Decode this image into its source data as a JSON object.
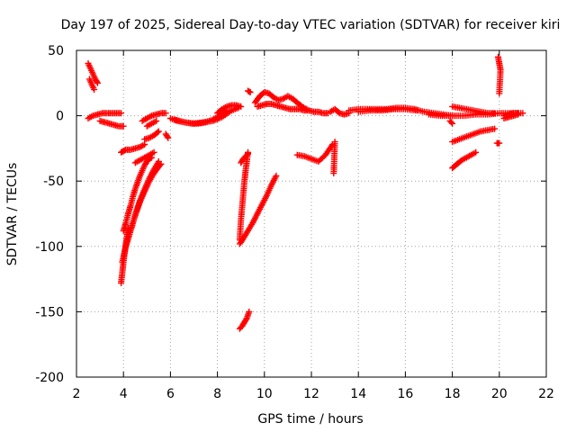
{
  "chart_data": {
    "type": "scatter",
    "title": "Day 197 of 2025, Sidereal Day-to-day VTEC variation (SDTVAR) for receiver kiri",
    "xlabel": "GPS time / hours",
    "ylabel": "SDTVAR / TECUs",
    "xlim": [
      2,
      22
    ],
    "ylim": [
      -200,
      50
    ],
    "xticks": [
      "2",
      "4",
      "6",
      "8",
      "10",
      "12",
      "14",
      "16",
      "18",
      "20",
      "22"
    ],
    "yticks": [
      "50",
      "0",
      "-50",
      "-100",
      "-150",
      "-200"
    ],
    "grid": true,
    "marker": "plus",
    "color": "#ff0000",
    "segments": [
      {
        "x": [
          2.5,
          2.6,
          2.7,
          2.8,
          2.9
        ],
        "y": [
          40,
          36,
          32,
          28,
          25
        ]
      },
      {
        "x": [
          2.55,
          2.65,
          2.75
        ],
        "y": [
          28,
          24,
          20
        ]
      },
      {
        "x": [
          2.5,
          2.7,
          2.9,
          3.1,
          3.3,
          3.5,
          3.7,
          3.9
        ],
        "y": [
          -2,
          0,
          1,
          2,
          2,
          2,
          2,
          2
        ]
      },
      {
        "x": [
          3.0,
          3.2,
          3.4,
          3.6,
          3.8,
          4.0
        ],
        "y": [
          -4,
          -5,
          -6,
          -7,
          -8,
          -8
        ]
      },
      {
        "x": [
          3.9,
          4.0,
          4.1,
          4.3,
          4.5,
          4.7,
          4.9
        ],
        "y": [
          -28,
          -27,
          -26,
          -26,
          -25,
          -24,
          -22
        ]
      },
      {
        "x": [
          3.9,
          3.95,
          4.0,
          4.05,
          4.1,
          4.15,
          4.2
        ],
        "y": [
          -128,
          -120,
          -112,
          -105,
          -98,
          -92,
          -86
        ]
      },
      {
        "x": [
          3.95,
          4.1,
          4.3,
          4.5,
          4.7,
          4.9,
          5.1,
          5.3,
          5.5
        ],
        "y": [
          -112,
          -100,
          -88,
          -76,
          -65,
          -56,
          -48,
          -41,
          -35
        ]
      },
      {
        "x": [
          4.1,
          4.3,
          4.5,
          4.7,
          4.9,
          5.1,
          5.3,
          5.5,
          5.6
        ],
        "y": [
          -100,
          -88,
          -76,
          -66,
          -58,
          -50,
          -44,
          -39,
          -37
        ]
      },
      {
        "x": [
          4.0,
          4.1,
          4.2,
          4.3,
          4.4,
          4.5,
          4.6,
          4.7,
          4.8,
          4.9,
          5.0,
          5.1,
          5.2
        ],
        "y": [
          -88,
          -82,
          -75,
          -69,
          -62,
          -56,
          -51,
          -46,
          -42,
          -38,
          -35,
          -33,
          -32
        ]
      },
      {
        "x": [
          4.5,
          4.7,
          4.9,
          5.1,
          5.3
        ],
        "y": [
          -36,
          -34,
          -32,
          -30,
          -28
        ]
      },
      {
        "x": [
          4.9,
          5.1,
          5.3,
          5.5
        ],
        "y": [
          -18,
          -17,
          -15,
          -12
        ]
      },
      {
        "x": [
          5.0,
          5.2,
          5.4
        ],
        "y": [
          -8,
          -6,
          -4
        ]
      },
      {
        "x": [
          4.8,
          5.0,
          5.2,
          5.4,
          5.6,
          5.8
        ],
        "y": [
          -4,
          -2,
          0,
          1,
          2,
          2
        ]
      },
      {
        "x": [
          5.8,
          5.9
        ],
        "y": [
          -14,
          -17
        ]
      },
      {
        "x": [
          6.0,
          6.3,
          6.6,
          6.9,
          7.2,
          7.5,
          7.8,
          8.1,
          8.4
        ],
        "y": [
          -2,
          -4,
          -5,
          -6,
          -6,
          -5,
          -3,
          0,
          4
        ]
      },
      {
        "x": [
          6.2,
          6.6,
          7.0,
          7.4,
          7.8,
          8.2,
          8.6,
          8.9
        ],
        "y": [
          -3,
          -5,
          -6,
          -5,
          -4,
          -1,
          4,
          6
        ]
      },
      {
        "x": [
          8.0,
          8.2,
          8.4,
          8.6,
          8.8,
          9.0
        ],
        "y": [
          2,
          5,
          7,
          8,
          8,
          7
        ]
      },
      {
        "x": [
          8.95,
          9.0,
          9.05,
          9.1,
          9.15,
          9.2,
          9.25,
          9.3
        ],
        "y": [
          -95,
          -80,
          -70,
          -60,
          -50,
          -42,
          -35,
          -28
        ]
      },
      {
        "x": [
          9.0,
          9.1,
          9.2,
          9.3
        ],
        "y": [
          -36,
          -33,
          -31,
          -29
        ]
      },
      {
        "x": [
          8.95,
          9.1,
          9.3,
          9.5,
          9.7,
          9.9,
          10.1,
          10.3,
          10.5
        ],
        "y": [
          -98,
          -94,
          -88,
          -82,
          -75,
          -68,
          -61,
          -53,
          -46
        ]
      },
      {
        "x": [
          8.95,
          9.05,
          9.15,
          9.25,
          9.35
        ],
        "y": [
          -163,
          -161,
          -158,
          -155,
          -150
        ]
      },
      {
        "x": [
          9.3,
          9.4
        ],
        "y": [
          19,
          18
        ]
      },
      {
        "x": [
          9.6,
          9.8,
          10.0,
          10.2,
          10.4,
          10.6,
          10.8,
          11.0,
          11.2,
          11.4,
          11.6,
          11.8
        ],
        "y": [
          10,
          15,
          18,
          17,
          14,
          12,
          13,
          15,
          13,
          10,
          7,
          5
        ]
      },
      {
        "x": [
          9.7,
          9.9,
          10.1,
          10.3,
          10.5,
          10.7,
          10.9,
          11.1,
          11.3,
          11.5,
          11.7,
          11.9,
          12.1,
          12.3,
          12.5,
          12.7
        ],
        "y": [
          7,
          8,
          9,
          9,
          8,
          7,
          6,
          5,
          5,
          5,
          4,
          4,
          3,
          3,
          2,
          2
        ]
      },
      {
        "x": [
          11.4,
          11.7,
          12.0,
          12.3,
          12.6,
          12.9
        ],
        "y": [
          -30,
          -31,
          -33,
          -35,
          -30,
          -22
        ]
      },
      {
        "x": [
          12.95,
          13.0
        ],
        "y": [
          -44,
          -20
        ]
      },
      {
        "x": [
          12.8,
          13.0,
          13.2,
          13.4,
          13.6
        ],
        "y": [
          3,
          5,
          2,
          1,
          2
        ]
      },
      {
        "x": [
          13.6,
          14.0,
          14.4,
          14.8,
          15.2,
          15.6,
          16.0,
          16.4,
          16.8,
          17.2,
          17.6,
          18.0
        ],
        "y": [
          4,
          5,
          5,
          5,
          5,
          6,
          6,
          5,
          3,
          2,
          1,
          0
        ]
      },
      {
        "x": [
          14.0,
          14.5,
          15.0,
          15.5,
          16.0,
          16.5
        ],
        "y": [
          3,
          4,
          4,
          5,
          5,
          4
        ]
      },
      {
        "x": [
          17.0,
          17.5,
          18.0,
          18.5,
          19.0,
          19.5,
          20.0,
          20.5,
          21.0
        ],
        "y": [
          1,
          0,
          0,
          0,
          1,
          1,
          2,
          2,
          2
        ]
      },
      {
        "x": [
          17.9,
          18.0
        ],
        "y": [
          -4,
          -6
        ]
      },
      {
        "x": [
          18.0,
          18.3,
          18.6,
          18.9,
          19.2,
          19.5,
          19.8
        ],
        "y": [
          7,
          6,
          5,
          4,
          3,
          2,
          2
        ]
      },
      {
        "x": [
          18.0,
          18.3,
          18.6,
          18.9,
          19.2,
          19.5,
          19.8
        ],
        "y": [
          -20,
          -18,
          -16,
          -14,
          -12,
          -11,
          -10
        ]
      },
      {
        "x": [
          18.0,
          18.2,
          18.4,
          18.6,
          18.8,
          19.0
        ],
        "y": [
          -40,
          -37,
          -34,
          -32,
          -30,
          -28
        ]
      },
      {
        "x": [
          19.9,
          20.0
        ],
        "y": [
          -21,
          -21
        ]
      },
      {
        "x": [
          19.95,
          20.0,
          20.05,
          20.0
        ],
        "y": [
          45,
          40,
          35,
          17
        ]
      },
      {
        "x": [
          20.2,
          20.4,
          20.6,
          20.8
        ],
        "y": [
          0,
          1,
          2,
          2
        ]
      },
      {
        "x": [
          20.2,
          20.4,
          20.6,
          20.8
        ],
        "y": [
          -2,
          -1,
          0,
          1
        ]
      }
    ]
  }
}
